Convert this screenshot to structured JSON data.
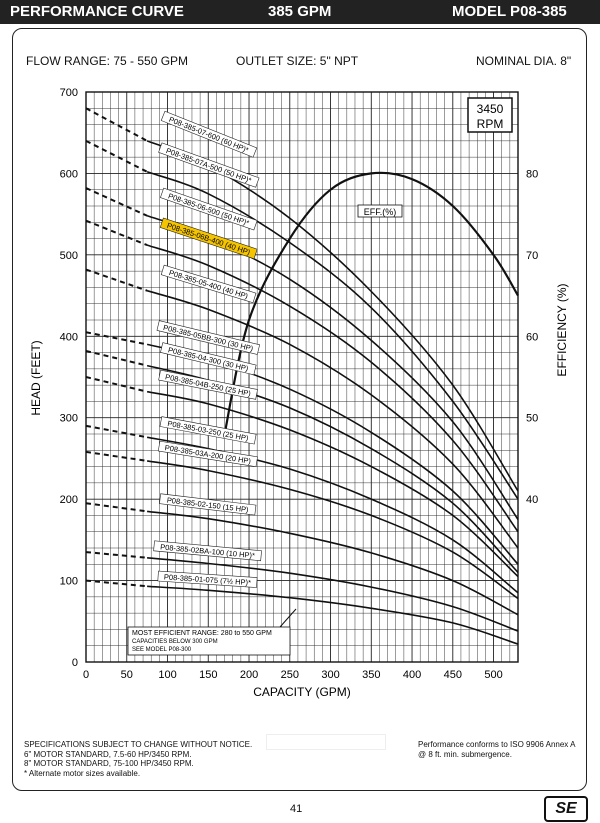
{
  "header": {
    "left": "PERFORMANCE CURVE",
    "center": "385 GPM",
    "right": "MODEL  P08-385"
  },
  "specs": {
    "flow_range": "FLOW RANGE: 75 - 550 GPM",
    "outlet": "OUTLET SIZE: 5\" NPT",
    "nominal": "NOMINAL DIA. 8\""
  },
  "rpm_box": [
    "3450",
    "RPM"
  ],
  "eff_label": "EFF.(%)",
  "efficient_note": [
    "MOST EFFICIENT RANGE: 280 to 550 GPM",
    "CAPACITIES BELOW 300 GPM",
    "SEE  MODEL  P08-300"
  ],
  "footer": {
    "left": [
      "SPECIFICATIONS SUBJECT TO CHANGE WITHOUT NOTICE.",
      "6\" MOTOR STANDARD, 7.5-60 HP/3450 RPM.",
      "8\" MOTOR STANDARD, 75-100 HP/3450 RPM.",
      "* Alternate motor sizes available."
    ],
    "right": [
      "Performance conforms to ISO 9906 Annex A",
      "@ 8 ft. min. submergence."
    ],
    "page": "41",
    "logo": "SE"
  },
  "colors": {
    "highlight": "#f5c400",
    "ink": "#111111"
  },
  "chart_data": {
    "type": "line",
    "xlabel": "CAPACITY (GPM)",
    "ylabel": "HEAD (FEET)",
    "y2label": "EFFICIENCY (%)",
    "xlim": [
      0,
      530
    ],
    "ylim": [
      0,
      700
    ],
    "y2lim": [
      20,
      90
    ],
    "x_ticks": [
      0,
      50,
      100,
      150,
      200,
      250,
      300,
      350,
      400,
      450,
      500
    ],
    "y_ticks": [
      0,
      100,
      200,
      300,
      400,
      500,
      600,
      700
    ],
    "y2_ticks": [
      40,
      50,
      60,
      70,
      80
    ],
    "grid": true,
    "series": [
      {
        "name": "P08-385-07-600 (60 HP)*",
        "shutoff": 680,
        "x": [
          75,
          150,
          250,
          350,
          450,
          530
        ],
        "y": [
          640,
          610,
          545,
          455,
          340,
          210
        ]
      },
      {
        "name": "P08-385-07A-500 (50 HP)*",
        "shutoff": 640,
        "x": [
          75,
          150,
          250,
          350,
          450,
          530
        ],
        "y": [
          602,
          575,
          515,
          435,
          320,
          200
        ]
      },
      {
        "name": "P08-385-06-500 (50 HP)*",
        "shutoff": 582,
        "x": [
          75,
          150,
          250,
          350,
          450,
          530
        ],
        "y": [
          548,
          522,
          470,
          395,
          295,
          175
        ]
      },
      {
        "name": "P08-385-06B-400 (40 HP)",
        "shutoff": 542,
        "highlight": true,
        "x": [
          75,
          150,
          250,
          350,
          450,
          530
        ],
        "y": [
          512,
          487,
          437,
          368,
          272,
          160
        ]
      },
      {
        "name": "P08-385-05-400 (40 HP)",
        "shutoff": 482,
        "x": [
          75,
          150,
          250,
          350,
          450,
          530
        ],
        "y": [
          456,
          433,
          390,
          328,
          243,
          140
        ]
      },
      {
        "name": "P08-385-05BB-300 (30 HP)",
        "shutoff": 405,
        "x": [
          75,
          150,
          250,
          350,
          450,
          530
        ],
        "y": [
          390,
          372,
          335,
          282,
          210,
          120
        ]
      },
      {
        "name": "P08-385-04-300 (30 HP)",
        "shutoff": 382,
        "x": [
          75,
          150,
          250,
          350,
          450,
          530
        ],
        "y": [
          364,
          346,
          312,
          262,
          195,
          110
        ]
      },
      {
        "name": "P08-385-04B-250 (25 HP)",
        "shutoff": 350,
        "x": [
          75,
          150,
          250,
          350,
          450,
          530
        ],
        "y": [
          332,
          317,
          285,
          240,
          180,
          105
        ]
      },
      {
        "name": "P08-385-03-250 (25 HP)",
        "shutoff": 290,
        "x": [
          75,
          150,
          250,
          350,
          450,
          530
        ],
        "y": [
          276,
          262,
          237,
          200,
          150,
          85
        ]
      },
      {
        "name": "P08-385-03A-200 (20 HP)",
        "shutoff": 258,
        "x": [
          75,
          150,
          250,
          350,
          450,
          530
        ],
        "y": [
          247,
          235,
          212,
          180,
          135,
          78
        ]
      },
      {
        "name": "P08-385-02-150 (15 HP)",
        "shutoff": 195,
        "x": [
          75,
          150,
          250,
          350,
          450,
          530
        ],
        "y": [
          185,
          176,
          158,
          134,
          100,
          58
        ]
      },
      {
        "name": "P08-385-02BA-100 (10 HP)*",
        "shutoff": 135,
        "x": [
          75,
          150,
          250,
          350,
          450,
          530
        ],
        "y": [
          128,
          121,
          109,
          92,
          68,
          38
        ]
      },
      {
        "name": "P08-385-01-075 (7½ HP)*",
        "shutoff": 100,
        "x": [
          75,
          150,
          250,
          350,
          450,
          530
        ],
        "y": [
          93,
          88,
          79,
          66,
          48,
          22
        ]
      }
    ],
    "efficiency": {
      "x": [
        170,
        200,
        250,
        300,
        350,
        400,
        450,
        500,
        530
      ],
      "y": [
        48,
        62,
        72,
        78,
        80,
        79.3,
        76,
        70,
        65
      ]
    }
  }
}
